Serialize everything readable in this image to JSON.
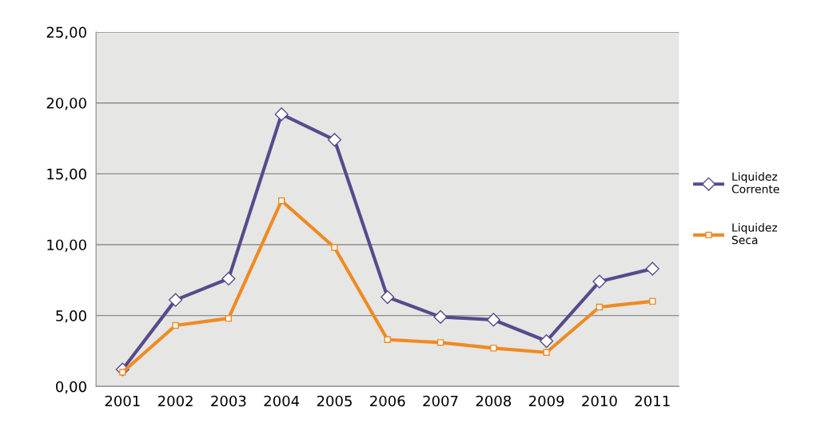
{
  "chart_data": {
    "type": "line",
    "categories": [
      "2001",
      "2002",
      "2003",
      "2004",
      "2005",
      "2006",
      "2007",
      "2008",
      "2009",
      "2010",
      "2011"
    ],
    "series": [
      {
        "name": "Liquidez\nCorrente",
        "color": "#584a8c",
        "marker": "diamond",
        "values": [
          1.2,
          6.1,
          7.6,
          19.2,
          17.4,
          6.3,
          4.9,
          4.7,
          3.2,
          7.4,
          8.3
        ]
      },
      {
        "name": "Liquidez\nSeca",
        "color": "#f08a24",
        "marker": "square",
        "values": [
          1.0,
          4.3,
          4.8,
          13.1,
          9.8,
          3.3,
          3.1,
          2.7,
          2.4,
          5.6,
          6.0
        ]
      }
    ],
    "ylim": [
      0,
      25
    ],
    "yticks": [
      {
        "value": 0,
        "label": "0,00"
      },
      {
        "value": 5,
        "label": "5,00"
      },
      {
        "value": 10,
        "label": "10,00"
      },
      {
        "value": 15,
        "label": "15,00"
      },
      {
        "value": 20,
        "label": "20,00"
      },
      {
        "value": 25,
        "label": "25,00"
      }
    ],
    "grid": "y",
    "legend": "right",
    "line_style": "solid"
  }
}
